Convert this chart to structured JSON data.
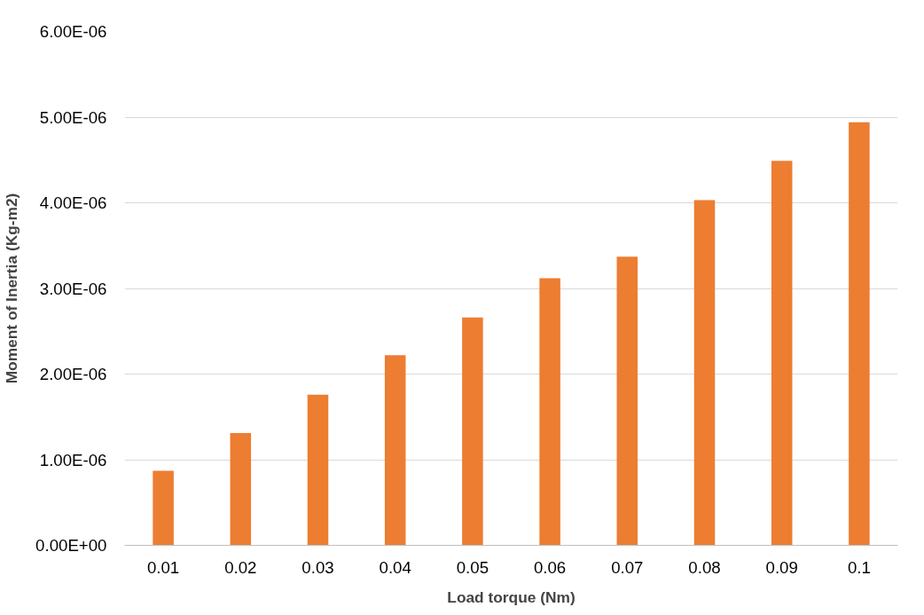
{
  "chart_data": {
    "type": "bar",
    "xlabel": "Load torque (Nm)",
    "ylabel": "Moment of Inertia (Kg-m2)",
    "categories": [
      "0.01",
      "0.02",
      "0.03",
      "0.04",
      "0.05",
      "0.06",
      "0.07",
      "0.08",
      "0.09",
      "0.1"
    ],
    "values": [
      8.7e-07,
      1.31e-06,
      1.76e-06,
      2.22e-06,
      2.66e-06,
      3.12e-06,
      3.37e-06,
      4.03e-06,
      4.49e-06,
      4.94e-06
    ],
    "color": "#ed7d31",
    "ylim": [
      0,
      6e-06
    ],
    "yticks": [
      {
        "value": 0,
        "label": "0.00E+00"
      },
      {
        "value": 1e-06,
        "label": "1.00E-06"
      },
      {
        "value": 2e-06,
        "label": "2.00E-06"
      },
      {
        "value": 3e-06,
        "label": "3.00E-06"
      },
      {
        "value": 4e-06,
        "label": "4.00E-06"
      },
      {
        "value": 5e-06,
        "label": "5.00E-06"
      },
      {
        "value": 6e-06,
        "label": "6.00E-06"
      }
    ],
    "grid": "y"
  }
}
